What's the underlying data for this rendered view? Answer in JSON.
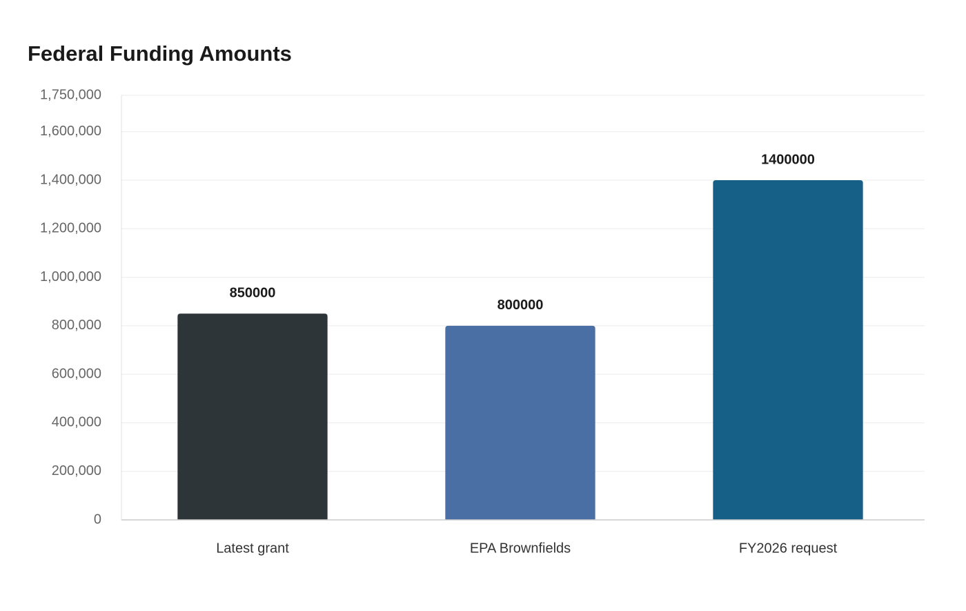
{
  "chart_data": {
    "type": "bar",
    "title": "Federal Funding Amounts",
    "categories": [
      "Latest grant",
      "EPA Brownfields",
      "FY2026 request"
    ],
    "values": [
      850000,
      800000,
      1400000
    ],
    "colors": [
      "#2d3538",
      "#4a6fa5",
      "#166088"
    ],
    "ylim": [
      0,
      1750000
    ],
    "yticks": [
      0,
      {
        "value": 200000,
        "label": "200,000"
      },
      {
        "value": 400000,
        "label": "400,000"
      },
      {
        "value": 600000,
        "label": "600,000"
      },
      {
        "value": 800000,
        "label": "800,000"
      },
      {
        "value": 1000000,
        "label": "1,000,000"
      },
      {
        "value": 1200000,
        "label": "1,200,000"
      },
      {
        "value": 1400000,
        "label": "1,400,000"
      },
      {
        "value": 1600000,
        "label": "1,600,000"
      },
      {
        "value": 1750000,
        "label": "1,750,000"
      }
    ],
    "grid": true
  }
}
